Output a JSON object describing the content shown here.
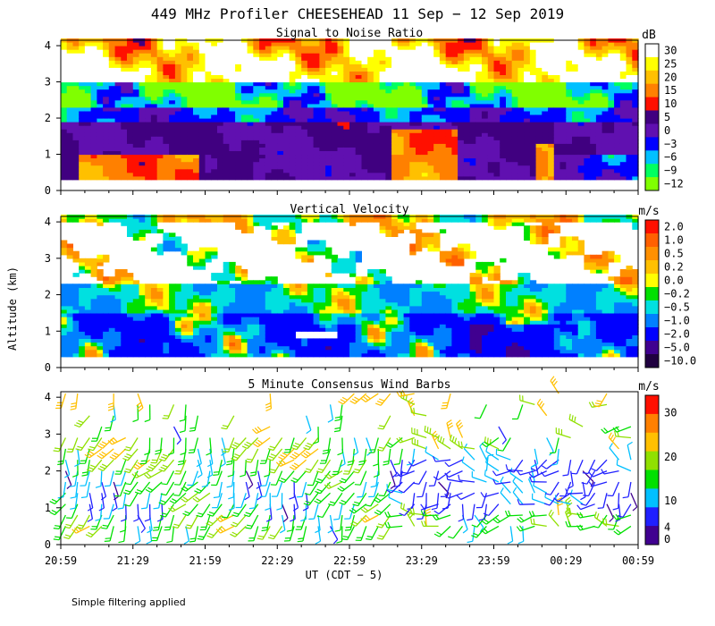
{
  "chart_data": {
    "type": "heatmap",
    "title": "449 MHz Profiler CHEESEHEAD 11 Sep − 12 Sep 2019",
    "xlabel": "UT  (CDT − 5)",
    "ylabel": "Altitude (km)",
    "x_tick_labels": [
      "20:59",
      "21:29",
      "21:59",
      "22:29",
      "22:59",
      "23:29",
      "23:59",
      "00:29",
      "00:59"
    ],
    "xlim_minutes_after_2059": [
      0,
      240
    ],
    "y_ticks": [
      0,
      1,
      2,
      3,
      4
    ],
    "ylim_km": [
      0,
      4.15
    ],
    "panels": [
      {
        "title": "Signal to Noise Ratio",
        "unit": "dB",
        "colorbar_labels": [
          "30",
          "25",
          "20",
          "15",
          "10",
          "5",
          "0",
          "−3",
          "−6",
          "−9",
          "−12"
        ],
        "colorbar_colors": [
          "#ffffff",
          "#ffff00",
          "#ffc000",
          "#ff8000",
          "#ff1000",
          "#400080",
          "#6010b0",
          "#0000ff",
          "#00c0ff",
          "#00ff60",
          "#80ff00"
        ],
        "features": [
          {
            "label": "strong low-level echo",
            "t_start": 8,
            "t_end": 58,
            "alt_top_km": 1.0,
            "level_db": 15
          },
          {
            "label": "strong echo near 23:29",
            "t_start": 138,
            "t_end": 165,
            "alt_top_km": 1.7,
            "level_db": 15
          },
          {
            "label": "strong echo near 00:29",
            "t_start": 198,
            "t_end": 206,
            "alt_top_km": 1.3,
            "level_db": 15
          }
        ]
      },
      {
        "title": "Vertical Velocity",
        "unit": "m/s",
        "colorbar_labels": [
          "2.0",
          "1.0",
          "0.5",
          "0.2",
          "0.0",
          "−0.2",
          "−0.5",
          "−1.0",
          "−2.0",
          "−5.0",
          "−10.0"
        ],
        "colorbar_colors": [
          "#ff1000",
          "#ff6000",
          "#ff9000",
          "#ffc000",
          "#ffff00",
          "#00e000",
          "#00e0e0",
          "#0080ff",
          "#0000ff",
          "#400090",
          "#200040"
        ]
      },
      {
        "title": "5 Minute Consensus Wind Barbs",
        "unit": "m/s",
        "colorbar_labels": [
          "30",
          "20",
          "10",
          "4",
          "0"
        ],
        "colorbar_colors": [
          "#ff1000",
          "#ff8000",
          "#ffc000",
          "#90e000",
          "#00e000",
          "#00c0ff",
          "#2020ff",
          "#400090"
        ],
        "colorbar_label_positions_ms": [
          30,
          20,
          10,
          4,
          0
        ]
      }
    ]
  },
  "footnote": "Simple filtering applied"
}
